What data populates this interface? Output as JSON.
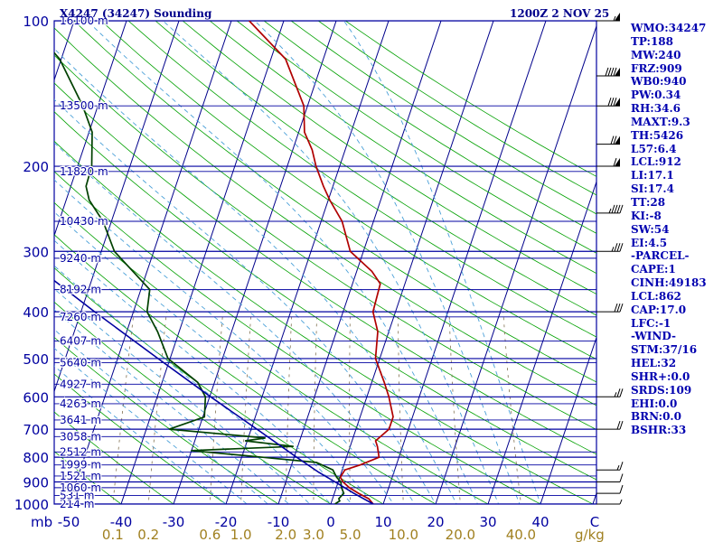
{
  "header": {
    "station_title": "X4247 (34247) Sounding",
    "time_title": "1200Z  2 NOV 25"
  },
  "indices": [
    "WMO:34247",
    "TP:188",
    "MW:240",
    "FRZ:909",
    "WB0:940",
    "PW:0.34",
    "RH:34.6",
    "MAXT:9.3",
    "TH:5426",
    "L57:6.4",
    "LCL:912",
    "LI:17.1",
    "SI:17.4",
    "TT:28",
    "KI:-8",
    "SW:54",
    "EI:4.5",
    "-PARCEL-",
    "CAPE:1",
    "CINH:49183",
    "LCL:862",
    "CAP:17.0",
    "LFC:-1",
    "-WIND-",
    "STM:37/16",
    "HEL:32",
    "SHR+:0.0",
    "SRDS:109",
    "EHI:0.0",
    "BRN:0.0",
    "BSHR:33"
  ],
  "chart_data": {
    "type": "skew-t log-p sounding",
    "pressure_unit_label": "mb",
    "mixing_ratio_unit_label": "g/kg",
    "temperature_unit_label": "C",
    "xlim": [
      -50,
      50
    ],
    "ylim": [
      1000,
      100
    ],
    "pressure_ticks": [
      100,
      200,
      300,
      400,
      500,
      600,
      700,
      800,
      900,
      1000
    ],
    "temperature_ticks": [
      "-50",
      "-40",
      "-30",
      "-20",
      "-10",
      "0",
      "10",
      "20",
      "30",
      "40"
    ],
    "mixing_ratio_labels": [
      "0.1",
      "0.2",
      "0.6",
      "1.0",
      "2.0",
      "3.0",
      "5.0",
      "10.0",
      "20.0",
      "40.0"
    ],
    "height_labels": [
      {
        "p": 1000,
        "label": "214 m"
      },
      {
        "p": 960,
        "label": "531 m"
      },
      {
        "p": 925,
        "label": "1060 m"
      },
      {
        "p": 875,
        "label": "1521 m"
      },
      {
        "p": 830,
        "label": "1999 m"
      },
      {
        "p": 780,
        "label": "2512 m"
      },
      {
        "p": 725,
        "label": "3058 m"
      },
      {
        "p": 670,
        "label": "3641 m"
      },
      {
        "p": 620,
        "label": "4263 m"
      },
      {
        "p": 565,
        "label": "4927 m"
      },
      {
        "p": 510,
        "label": "5640 m"
      },
      {
        "p": 460,
        "label": "6407 m"
      },
      {
        "p": 410,
        "label": "7260 m"
      },
      {
        "p": 360,
        "label": "8192 m"
      },
      {
        "p": 310,
        "label": "9240 m"
      },
      {
        "p": 260,
        "label": "10430 m"
      },
      {
        "p": 205,
        "label": "11820 m"
      },
      {
        "p": 150,
        "label": "13500 m"
      },
      {
        "p": 100,
        "label": "16100 m"
      }
    ],
    "series": [
      {
        "name": "Temperature",
        "color": "#b00000",
        "points": [
          [
            1000,
            8.1
          ],
          [
            975,
            6.9
          ],
          [
            950,
            4.6
          ],
          [
            925,
            2.5
          ],
          [
            900,
            0.9
          ],
          [
            880,
            0.1
          ],
          [
            850,
            0.5
          ],
          [
            830,
            3.1
          ],
          [
            800,
            6.2
          ],
          [
            760,
            5.2
          ],
          [
            740,
            4.5
          ],
          [
            700,
            6.3
          ],
          [
            660,
            6.3
          ],
          [
            600,
            4.2
          ],
          [
            560,
            2.4
          ],
          [
            500,
            -0.8
          ],
          [
            440,
            -2.1
          ],
          [
            400,
            -4.3
          ],
          [
            350,
            -4.7
          ],
          [
            330,
            -7.1
          ],
          [
            300,
            -12.5
          ],
          [
            260,
            -16.0
          ],
          [
            235,
            -19.7
          ],
          [
            220,
            -21.8
          ],
          [
            200,
            -24.5
          ],
          [
            185,
            -26.3
          ],
          [
            170,
            -28.9
          ],
          [
            150,
            -30.7
          ],
          [
            120,
            -37.2
          ],
          [
            100,
            -46.6
          ]
        ]
      },
      {
        "name": "Dewpoint",
        "color": "#004000",
        "points": [
          [
            1000,
            0.8
          ],
          [
            985,
            1.5
          ],
          [
            975,
            1.2
          ],
          [
            950,
            1.8
          ],
          [
            925,
            1.0
          ],
          [
            900,
            0.5
          ],
          [
            880,
            -0.6
          ],
          [
            850,
            -1.8
          ],
          [
            820,
            -5.4
          ],
          [
            800,
            -16.0
          ],
          [
            775,
            -30.1
          ],
          [
            760,
            -10.8
          ],
          [
            740,
            -20.4
          ],
          [
            730,
            -16.7
          ],
          [
            700,
            -35.6
          ],
          [
            660,
            -29.7
          ],
          [
            600,
            -30.8
          ],
          [
            560,
            -33.2
          ],
          [
            500,
            -40.4
          ],
          [
            440,
            -44.1
          ],
          [
            400,
            -47.4
          ],
          [
            360,
            -48.3
          ],
          [
            300,
            -57.5
          ],
          [
            260,
            -61.6
          ],
          [
            235,
            -65.6
          ],
          [
            220,
            -67.1
          ],
          [
            200,
            -67.3
          ],
          [
            170,
            -69.4
          ],
          [
            150,
            -72.9
          ],
          [
            120,
            -80.3
          ],
          [
            100,
            -89.1
          ]
        ]
      },
      {
        "name": "Parcel",
        "color": "#0000a0",
        "points": [
          [
            1000,
            8.1
          ],
          [
            950,
            3.7
          ],
          [
            900,
            -0.6
          ],
          [
            860,
            -4.3
          ],
          [
            800,
            -9.5
          ],
          [
            700,
            -18.9
          ],
          [
            600,
            -29.8
          ],
          [
            500,
            -42.3
          ],
          [
            400,
            -57.4
          ],
          [
            300,
            -76.2
          ],
          [
            200,
            -102.5
          ],
          [
            150,
            -120.4
          ],
          [
            120,
            -133.6
          ]
        ]
      }
    ],
    "wind_barbs": [
      {
        "p": 1000,
        "speed_kt": 5
      },
      {
        "p": 950,
        "speed_kt": 10
      },
      {
        "p": 900,
        "speed_kt": 10
      },
      {
        "p": 850,
        "speed_kt": 15
      },
      {
        "p": 700,
        "speed_kt": 20
      },
      {
        "p": 600,
        "speed_kt": 25
      },
      {
        "p": 400,
        "speed_kt": 30
      },
      {
        "p": 300,
        "speed_kt": 35
      },
      {
        "p": 250,
        "speed_kt": 45
      },
      {
        "p": 200,
        "speed_kt": 60
      },
      {
        "p": 180,
        "speed_kt": 70
      },
      {
        "p": 150,
        "speed_kt": 80
      },
      {
        "p": 130,
        "speed_kt": 90
      },
      {
        "p": 100,
        "speed_kt": 55
      }
    ]
  }
}
